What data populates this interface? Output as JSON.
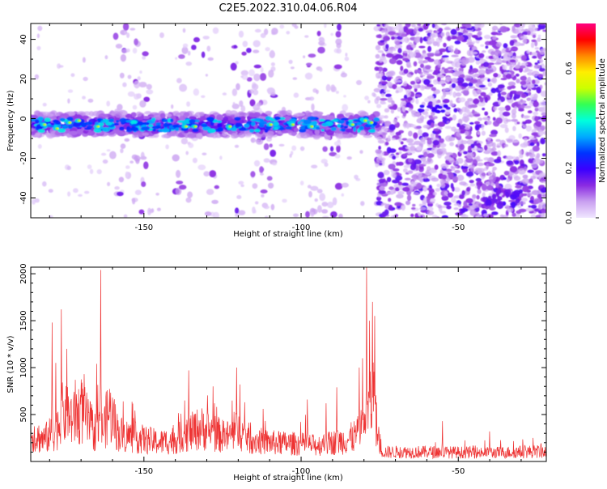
{
  "title": "C2E5.2022.310.04.06.R04",
  "chart_data": [
    {
      "type": "heatmap",
      "xlabel": "Height of straight line (km)",
      "ylabel": "Frequency (Hz)",
      "xlim": [
        -186,
        -22
      ],
      "ylim": [
        -50,
        48
      ],
      "x_ticks": [
        -150,
        -100,
        -50
      ],
      "y_ticks": [
        -40,
        -20,
        0,
        20,
        40
      ],
      "colorbar": {
        "label": "Normalized spectral amplitude",
        "range": [
          0.0,
          0.78
        ],
        "ticks": [
          0.0,
          0.2,
          0.4,
          0.6
        ],
        "colors": [
          "#f0e6ff",
          "#c9a0f0",
          "#8a2be2",
          "#3a00ff",
          "#0033ff",
          "#00aaff",
          "#00ffdd",
          "#33ff55",
          "#ccff00",
          "#ffee00",
          "#ff8800",
          "#ff0000",
          "#ff0080"
        ]
      },
      "features": {
        "main_band": {
          "x_range": [
            -186,
            -76
          ],
          "freq_center": -3,
          "freq_halfwidth": 6
        },
        "vertical_bands": [
          {
            "x_range": [
              -160,
              -148
            ],
            "level": "medium"
          },
          {
            "x_range": [
              -140,
              -126
            ],
            "level": "low"
          },
          {
            "x_range": [
              -122,
              -108
            ],
            "level": "high"
          },
          {
            "x_range": [
              -98,
              -86
            ],
            "level": "medium"
          }
        ],
        "noise_region": {
          "x_range": [
            -76,
            -22
          ],
          "level": "high"
        },
        "streak": {
          "x_range": [
            -63,
            -53
          ],
          "freq_center": 5
        }
      }
    },
    {
      "type": "line",
      "xlabel": "Height of straight line (km)",
      "ylabel": "SNR (10 * v/v)",
      "xlim": [
        -186,
        -22
      ],
      "ylim": [
        0,
        2070
      ],
      "x_ticks": [
        -150,
        -100,
        -50
      ],
      "y_ticks": [
        500,
        1000,
        1500,
        2000
      ],
      "color": "#ee3333",
      "profile": [
        [
          -186,
          380
        ],
        [
          -182,
          300
        ],
        [
          -178,
          420
        ],
        [
          -176,
          650
        ],
        [
          -172,
          580
        ],
        [
          -170,
          700
        ],
        [
          -166,
          420
        ],
        [
          -163,
          450
        ],
        [
          -161,
          700
        ],
        [
          -158,
          380
        ],
        [
          -150,
          300
        ],
        [
          -145,
          260
        ],
        [
          -140,
          300
        ],
        [
          -135,
          400
        ],
        [
          -132,
          460
        ],
        [
          -128,
          400
        ],
        [
          -124,
          330
        ],
        [
          -120,
          420
        ],
        [
          -116,
          300
        ],
        [
          -110,
          260
        ],
        [
          -100,
          240
        ],
        [
          -95,
          220
        ],
        [
          -90,
          260
        ],
        [
          -85,
          300
        ],
        [
          -80,
          420
        ],
        [
          -77,
          900
        ],
        [
          -75.5,
          300
        ],
        [
          -74,
          130
        ],
        [
          -60,
          130
        ],
        [
          -40,
          120
        ],
        [
          -22,
          140
        ]
      ],
      "peaks": [
        [
          -163.8,
          2040
        ],
        [
          -179.2,
          1480
        ],
        [
          -176.3,
          1620
        ],
        [
          -174.5,
          1200
        ],
        [
          -169,
          930
        ],
        [
          -178,
          1050
        ],
        [
          -171.8,
          870
        ],
        [
          -165,
          1040
        ],
        [
          -135.8,
          970
        ],
        [
          -120.5,
          1000
        ],
        [
          -128,
          800
        ],
        [
          -119.5,
          820
        ],
        [
          -137,
          650
        ],
        [
          -88.6,
          790
        ],
        [
          -92,
          620
        ],
        [
          -98,
          660
        ],
        [
          -79.2,
          2070
        ],
        [
          -78.2,
          1500
        ],
        [
          -77.3,
          1700
        ],
        [
          -76.6,
          1550
        ],
        [
          -80.5,
          1100
        ],
        [
          -81.5,
          1000
        ],
        [
          -55,
          430
        ],
        [
          -40,
          320
        ]
      ]
    }
  ]
}
